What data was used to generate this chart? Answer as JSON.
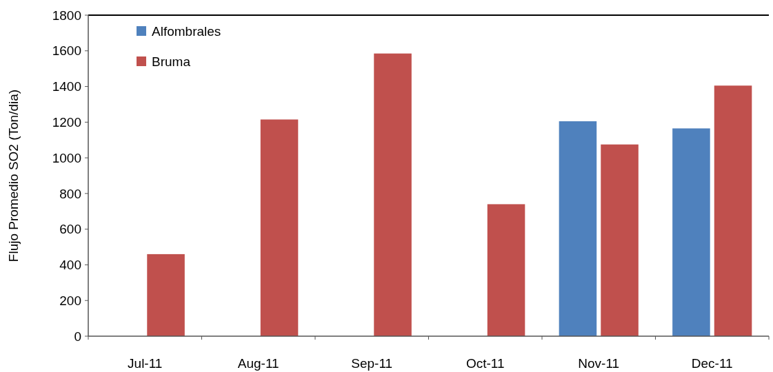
{
  "chart_data": {
    "type": "bar",
    "ylabel": "Flujo Promedio SO2 (Ton/dia)",
    "categories": [
      "Jul-11",
      "Aug-11",
      "Sep-11",
      "Oct-11",
      "Nov-11",
      "Dec-11"
    ],
    "series": [
      {
        "name": "Alfombrales",
        "color": "#4f81bd",
        "values": [
          null,
          null,
          null,
          null,
          1205,
          1165
        ]
      },
      {
        "name": "Bruma",
        "color": "#c0504d",
        "values": [
          460,
          1215,
          1585,
          740,
          1075,
          1405
        ]
      }
    ],
    "ylim": [
      0,
      1800
    ],
    "yticks": [
      0,
      200,
      400,
      600,
      800,
      1000,
      1200,
      1400,
      1600,
      1800
    ],
    "grid": false,
    "legend": "top left"
  }
}
